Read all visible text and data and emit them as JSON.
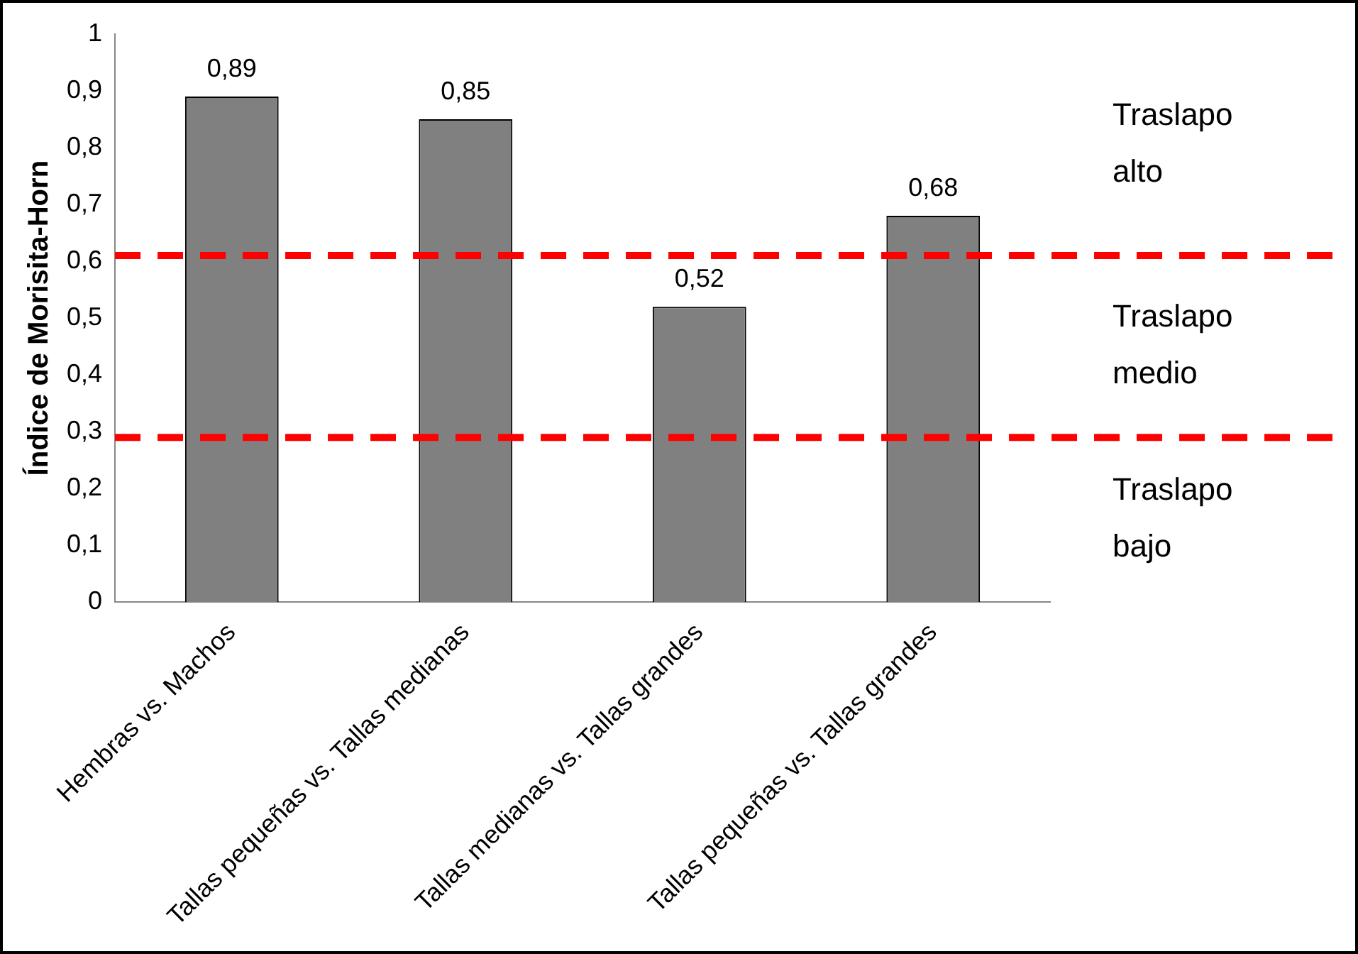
{
  "chart_data": {
    "type": "bar",
    "ylabel": "Índice de Morisita-Horn",
    "categories": [
      "Hembras vs. Machos",
      "Tallas pequeñas vs. Tallas medianas",
      "Tallas medianas vs. Tallas grandes",
      "Tallas pequeñas vs. Tallas grandes"
    ],
    "values": [
      0.89,
      0.85,
      0.52,
      0.68
    ],
    "color": "#808080",
    "value_labels": [
      "0,89",
      "0,85",
      "0,52",
      "0,68"
    ],
    "ylim": [
      0,
      1
    ],
    "yticks": [
      0,
      {
        "value": 0.1,
        "label": "0,1"
      },
      {
        "value": 0.2,
        "label": "0,2"
      },
      {
        "value": 0.3,
        "label": "0,3"
      },
      {
        "value": 0.4,
        "label": "0,4"
      },
      {
        "value": 0.5,
        "label": "0,5"
      },
      {
        "value": 0.6,
        "label": "0,6"
      },
      {
        "value": 0.7,
        "label": "0,7"
      },
      {
        "value": 0.8,
        "label": "0,8"
      },
      {
        "value": 0.9,
        "label": "0,9"
      },
      1
    ],
    "ref_lines": [
      {
        "axis": "y",
        "value": 0.61,
        "color": "#ff0000",
        "line_style": "dashed"
      },
      {
        "axis": "y",
        "value": 0.29,
        "color": "#ff0000",
        "line_style": "dashed"
      }
    ],
    "annotations": [
      "Traslapo alto",
      "Traslapo medio",
      "Traslapo bajo"
    ],
    "grid": false,
    "legend": false
  }
}
